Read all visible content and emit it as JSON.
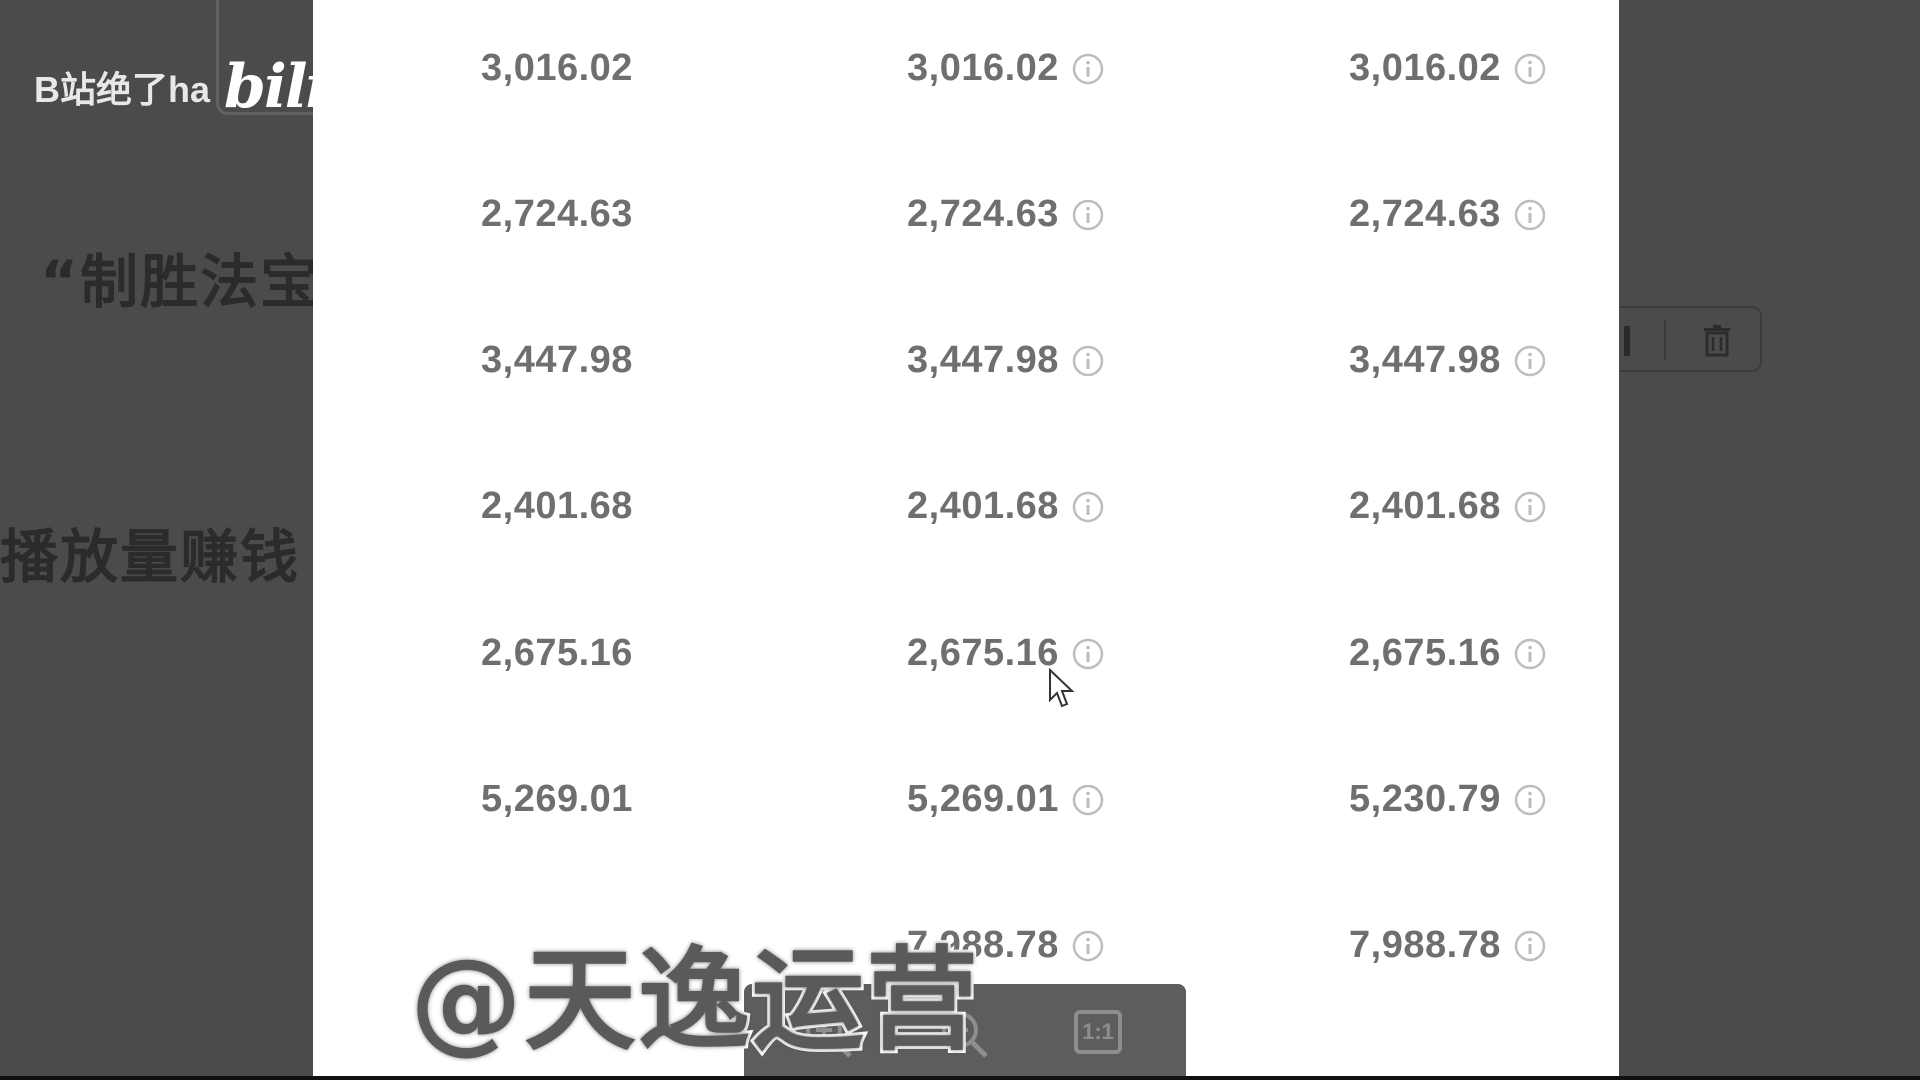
{
  "background": {
    "heading": "“制胜法宝",
    "subheading": "播放量赚钱（",
    "toolbar_icons": [
      "edit-icon",
      "trash-icon"
    ]
  },
  "watermark": {
    "bilibili_text": "B站绝了ha",
    "bilibili_logo": "bili",
    "author": "@天逸运营"
  },
  "table": {
    "rows": [
      [
        "3,016.02",
        "3,016.02",
        "3,016.02"
      ],
      [
        "2,724.63",
        "2,724.63",
        "2,724.63"
      ],
      [
        "3,447.98",
        "3,447.98",
        "3,447.98"
      ],
      [
        "2,401.68",
        "2,401.68",
        "2,401.68"
      ],
      [
        "2,675.16",
        "2,675.16",
        "2,675.16"
      ],
      [
        "5,269.01",
        "5,269.01",
        "5,230.79"
      ],
      [
        "",
        "7,988.78",
        "7,988.78"
      ]
    ]
  },
  "zoom_toolbar": {
    "buttons": [
      "zoom-in-icon",
      "zoom-out-icon",
      "actual-size-icon"
    ],
    "actual_size_label": "1:1"
  },
  "colors": {
    "page_dim": "#4b4b4b",
    "panel": "#ffffff",
    "value_text": "#6f6f6f",
    "info_icon": "#bdbdbd"
  }
}
